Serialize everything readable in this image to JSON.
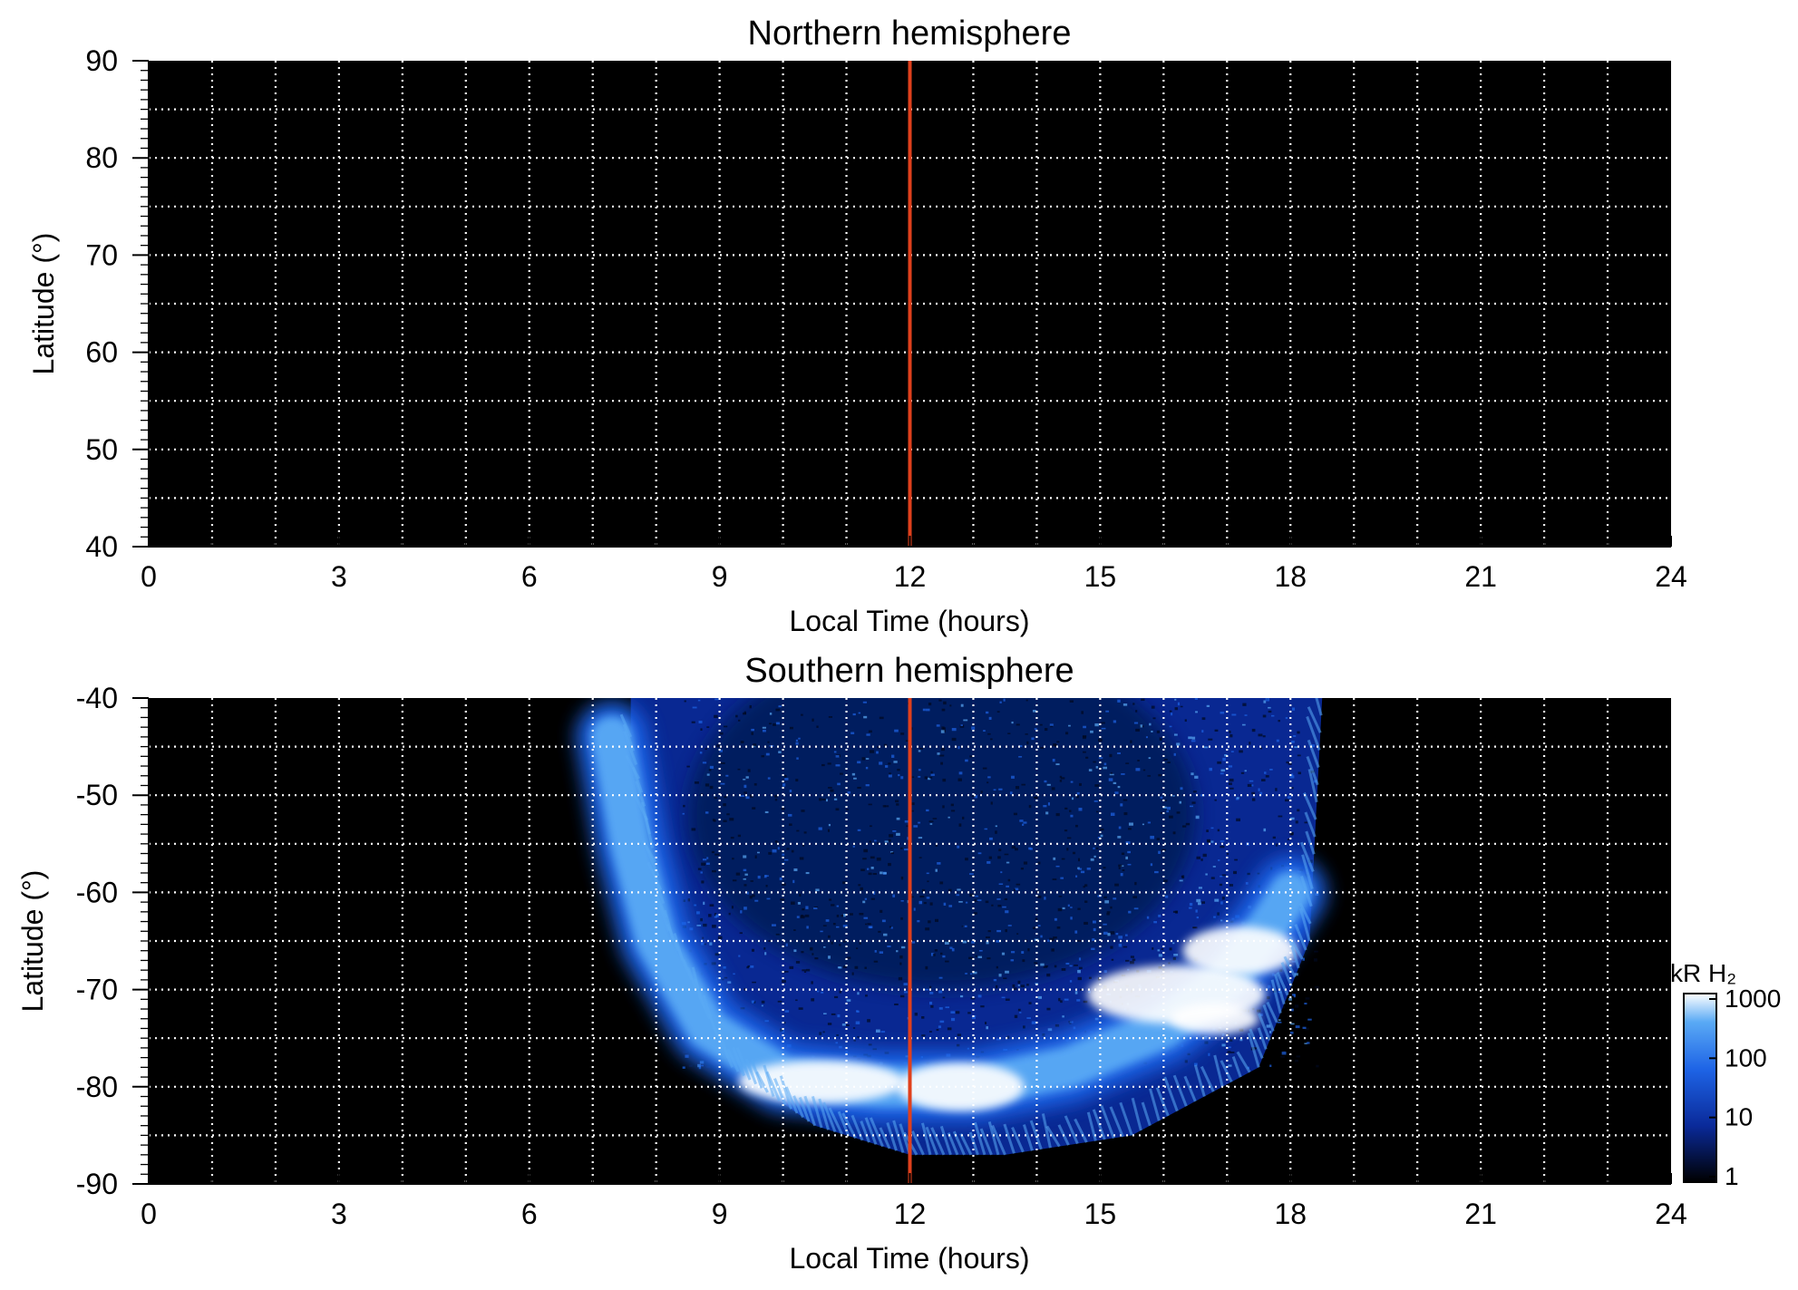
{
  "colors": {
    "background": "#000000",
    "grid": "#ffffff",
    "noon_line": "#e0401c",
    "aurora_colormap": [
      "#000000",
      "#0a2a9a",
      "#1e64e6",
      "#5aaaf5",
      "#ffffff"
    ]
  },
  "chart_data": [
    {
      "type": "heatmap",
      "title": "Northern hemisphere",
      "xlabel": "Local Time (hours)",
      "ylabel": "Latitude (°)",
      "xlim": [
        0,
        24
      ],
      "ylim": [
        40,
        90
      ],
      "xticks": [
        0,
        3,
        6,
        9,
        12,
        15,
        18,
        21,
        24
      ],
      "yticks": [
        90,
        80,
        70,
        60,
        50,
        40
      ],
      "xgrid": [
        1,
        2,
        3,
        4,
        5,
        6,
        7,
        8,
        9,
        10,
        11,
        12,
        13,
        14,
        15,
        16,
        17,
        18,
        19,
        20,
        21,
        22,
        23
      ],
      "ygrid": [
        45,
        50,
        55,
        60,
        65,
        70,
        75,
        80,
        85
      ],
      "grid": true,
      "grid_style": "dotted",
      "reference_line_x": 12,
      "emission": "none"
    },
    {
      "type": "heatmap",
      "title": "Southern hemisphere",
      "xlabel": "Local Time (hours)",
      "ylabel": "Latitude (°)",
      "xlim": [
        0,
        24
      ],
      "ylim": [
        -90,
        -40
      ],
      "xticks": [
        0,
        3,
        6,
        9,
        12,
        15,
        18,
        21,
        24
      ],
      "yticks": [
        -40,
        -50,
        -60,
        -70,
        -80,
        -90
      ],
      "xgrid": [
        1,
        2,
        3,
        4,
        5,
        6,
        7,
        8,
        9,
        10,
        11,
        12,
        13,
        14,
        15,
        16,
        17,
        18,
        19,
        20,
        21,
        22,
        23
      ],
      "ygrid": [
        -45,
        -50,
        -55,
        -60,
        -65,
        -70,
        -75,
        -80,
        -85
      ],
      "grid": true,
      "grid_style": "dotted",
      "reference_line_x": 12,
      "emission": {
        "coverage_local_time": [
          7.2,
          18.5
        ],
        "coverage_latitude": [
          -87,
          -40
        ],
        "diffuse_region": [
          {
            "lt": 8.5,
            "lat_top": -40,
            "lat_bottom": -75
          },
          {
            "lt": 12,
            "lat_top": -40,
            "lat_bottom": -75
          },
          {
            "lt": 17,
            "lat_top": -40,
            "lat_bottom": -64
          }
        ],
        "main_oval": [
          {
            "lt": 7.3,
            "lat": -44
          },
          {
            "lt": 7.6,
            "lat": -55
          },
          {
            "lt": 8.0,
            "lat": -65
          },
          {
            "lt": 8.8,
            "lat": -74
          },
          {
            "lt": 10.0,
            "lat": -79
          },
          {
            "lt": 11.5,
            "lat": -80
          },
          {
            "lt": 13.0,
            "lat": -80
          },
          {
            "lt": 14.5,
            "lat": -78
          },
          {
            "lt": 16.0,
            "lat": -74
          },
          {
            "lt": 17.0,
            "lat": -69
          },
          {
            "lt": 17.7,
            "lat": -63
          },
          {
            "lt": 18.0,
            "lat": -60
          }
        ],
        "equatorward_limit": [
          {
            "lt": 7.6,
            "lat": -44
          },
          {
            "lt": 8.2,
            "lat": -64
          },
          {
            "lt": 9.2,
            "lat": -78
          },
          {
            "lt": 10.5,
            "lat": -84
          },
          {
            "lt": 12.0,
            "lat": -87
          },
          {
            "lt": 13.5,
            "lat": -87
          },
          {
            "lt": 15.5,
            "lat": -85
          },
          {
            "lt": 17.5,
            "lat": -78
          },
          {
            "lt": 18.3,
            "lat": -65
          },
          {
            "lt": 18.5,
            "lat": -40
          }
        ]
      },
      "colorbar": {
        "title": "kR H₂",
        "scale": "log",
        "ticks": [
          "1000",
          "100",
          "10",
          "1"
        ],
        "range": [
          1,
          1000
        ]
      }
    }
  ]
}
